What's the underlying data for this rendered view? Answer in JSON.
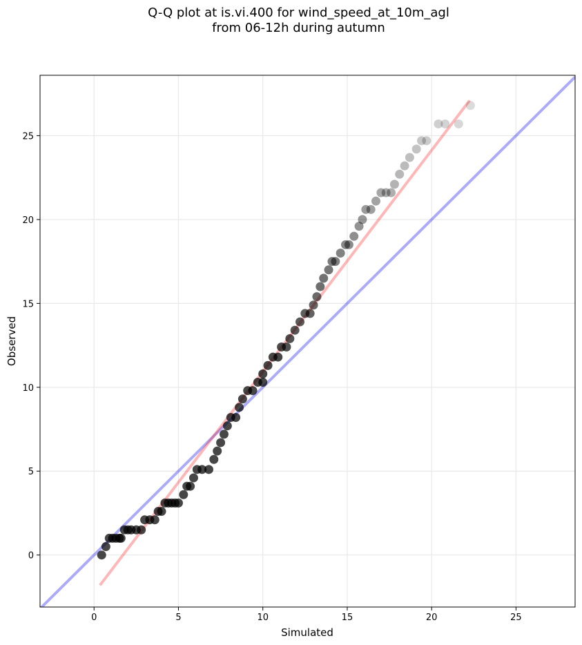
{
  "chart_data": {
    "type": "scatter",
    "title_line1": "Q-Q plot at is.vi.400 for wind_speed_at_10m_agl",
    "title_line2": "from 06-12h during autumn",
    "xlabel": "Simulated",
    "ylabel": "Observed",
    "xlim": [
      -3.2,
      28.5
    ],
    "ylim": [
      -3.1,
      28.6
    ],
    "xticks": [
      0,
      5,
      10,
      15,
      20,
      25
    ],
    "yticks": [
      0,
      5,
      10,
      15,
      20,
      25
    ],
    "xtick_labels": [
      "0",
      "5",
      "10",
      "15",
      "20",
      "25"
    ],
    "ytick_labels": [
      "0",
      "5",
      "10",
      "15",
      "20",
      "25"
    ],
    "grid": true,
    "points": [
      [
        0.45,
        0.0
      ],
      [
        0.7,
        0.5
      ],
      [
        0.9,
        1.0
      ],
      [
        1.1,
        1.0
      ],
      [
        1.3,
        1.0
      ],
      [
        1.5,
        1.0
      ],
      [
        1.6,
        1.0
      ],
      [
        1.8,
        1.5
      ],
      [
        2.0,
        1.5
      ],
      [
        2.2,
        1.5
      ],
      [
        2.5,
        1.5
      ],
      [
        2.8,
        1.5
      ],
      [
        3.0,
        2.1
      ],
      [
        3.3,
        2.1
      ],
      [
        3.6,
        2.1
      ],
      [
        3.8,
        2.6
      ],
      [
        4.0,
        2.6
      ],
      [
        4.2,
        3.1
      ],
      [
        4.4,
        3.1
      ],
      [
        4.6,
        3.1
      ],
      [
        4.8,
        3.1
      ],
      [
        5.0,
        3.1
      ],
      [
        5.3,
        3.6
      ],
      [
        5.5,
        4.1
      ],
      [
        5.7,
        4.1
      ],
      [
        5.9,
        4.6
      ],
      [
        6.1,
        5.1
      ],
      [
        6.4,
        5.1
      ],
      [
        6.8,
        5.1
      ],
      [
        7.1,
        5.7
      ],
      [
        7.3,
        6.2
      ],
      [
        7.5,
        6.7
      ],
      [
        7.7,
        7.2
      ],
      [
        7.9,
        7.7
      ],
      [
        8.1,
        8.2
      ],
      [
        8.4,
        8.2
      ],
      [
        8.6,
        8.8
      ],
      [
        8.8,
        9.3
      ],
      [
        9.1,
        9.8
      ],
      [
        9.4,
        9.8
      ],
      [
        9.7,
        10.3
      ],
      [
        10.0,
        10.3
      ],
      [
        10.0,
        10.8
      ],
      [
        10.3,
        11.3
      ],
      [
        10.6,
        11.8
      ],
      [
        10.9,
        11.8
      ],
      [
        11.1,
        12.4
      ],
      [
        11.4,
        12.4
      ],
      [
        11.6,
        12.9
      ],
      [
        11.9,
        13.4
      ],
      [
        12.2,
        13.9
      ],
      [
        12.5,
        14.4
      ],
      [
        12.8,
        14.4
      ],
      [
        13.0,
        14.9
      ],
      [
        13.2,
        15.4
      ],
      [
        13.4,
        16.0
      ],
      [
        13.6,
        16.5
      ],
      [
        13.9,
        17.0
      ],
      [
        14.1,
        17.5
      ],
      [
        14.3,
        17.5
      ],
      [
        14.6,
        18.0
      ],
      [
        14.9,
        18.5
      ],
      [
        15.1,
        18.5
      ],
      [
        15.4,
        19.0
      ],
      [
        15.7,
        19.6
      ],
      [
        15.9,
        20.0
      ],
      [
        16.1,
        20.6
      ],
      [
        16.4,
        20.6
      ],
      [
        16.7,
        21.1
      ],
      [
        17.0,
        21.6
      ],
      [
        17.3,
        21.6
      ],
      [
        17.6,
        21.6
      ],
      [
        17.8,
        22.1
      ],
      [
        18.1,
        22.7
      ],
      [
        18.4,
        23.2
      ],
      [
        18.7,
        23.7
      ],
      [
        19.1,
        24.2
      ],
      [
        19.4,
        24.7
      ],
      [
        19.7,
        24.7
      ],
      [
        20.4,
        25.7
      ],
      [
        20.8,
        25.7
      ],
      [
        21.6,
        25.7
      ],
      [
        22.3,
        26.8
      ]
    ],
    "one_to_one_line": {
      "x": [
        -3.2,
        28.5
      ],
      "y": [
        -3.2,
        28.5
      ]
    },
    "fit_line": {
      "x": [
        0.35,
        22.25
      ],
      "y": [
        -1.8,
        27.1
      ]
    },
    "colors": {
      "points": "#000000",
      "one_to_one_line": "#0000ee",
      "fit_line": "#ff2020",
      "grid": "#e8e8e8"
    }
  }
}
